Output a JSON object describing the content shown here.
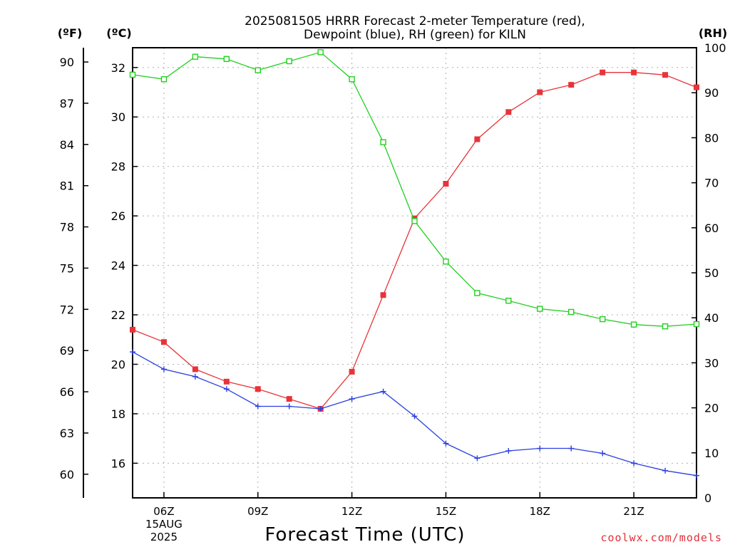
{
  "chart_data": {
    "type": "line",
    "title_line1": "2025081505 HRRR Forecast 2-meter Temperature (red),",
    "title_line2": "Dewpoint (blue), RH (green) for KILN",
    "unit_left_outer": "(ºF)",
    "unit_left_inner": "(ºC)",
    "unit_right": "(RH)",
    "xlabel": "Forecast Time (UTC)",
    "credit": "coolwx.com/models",
    "x_hours": [
      5,
      6,
      7,
      8,
      9,
      10,
      11,
      12,
      13,
      14,
      15,
      16,
      17,
      18,
      19,
      20,
      21,
      22,
      23
    ],
    "x_range": [
      5,
      23
    ],
    "x_ticks": [
      {
        "hour": 6,
        "label": "06Z",
        "sub1": "15AUG",
        "sub2": "2025"
      },
      {
        "hour": 9,
        "label": "09Z"
      },
      {
        "hour": 12,
        "label": "12Z"
      },
      {
        "hour": 15,
        "label": "15Z"
      },
      {
        "hour": 18,
        "label": "18Z"
      },
      {
        "hour": 21,
        "label": "21Z"
      }
    ],
    "ylim_c": [
      14.6,
      32.8
    ],
    "y_ticks_c": [
      16,
      18,
      20,
      22,
      24,
      26,
      28,
      30,
      32
    ],
    "y_ticks_f": [
      60,
      63,
      66,
      69,
      72,
      75,
      78,
      81,
      84,
      87,
      90
    ],
    "ylim_rh": [
      0,
      100
    ],
    "y_ticks_rh": [
      0,
      10,
      20,
      30,
      40,
      50,
      60,
      70,
      80,
      90,
      100
    ],
    "grid": true,
    "series": [
      {
        "name": "Temperature",
        "color": "#e8333a",
        "marker": "filled-square",
        "axis": "celsius",
        "values": [
          21.4,
          20.9,
          19.8,
          19.3,
          19.0,
          18.6,
          18.2,
          19.7,
          22.8,
          25.9,
          27.3,
          29.1,
          30.2,
          31.0,
          31.3,
          31.8,
          31.8,
          31.7,
          31.2
        ]
      },
      {
        "name": "Dewpoint",
        "color": "#2a3fe0",
        "marker": "plus",
        "axis": "celsius",
        "values": [
          20.5,
          19.8,
          19.5,
          19.0,
          18.3,
          18.3,
          18.2,
          18.6,
          18.9,
          17.9,
          16.8,
          16.2,
          16.5,
          16.6,
          16.6,
          16.4,
          16.0,
          15.7,
          15.5
        ]
      },
      {
        "name": "RH",
        "color": "#22d022",
        "marker": "open-square",
        "axis": "rh",
        "values": [
          94,
          93,
          98,
          97.5,
          95,
          97,
          99,
          93,
          79,
          61.5,
          52.5,
          45.5,
          43.8,
          42,
          41.3,
          39.7,
          38.5,
          38.1,
          38.6
        ]
      }
    ]
  }
}
